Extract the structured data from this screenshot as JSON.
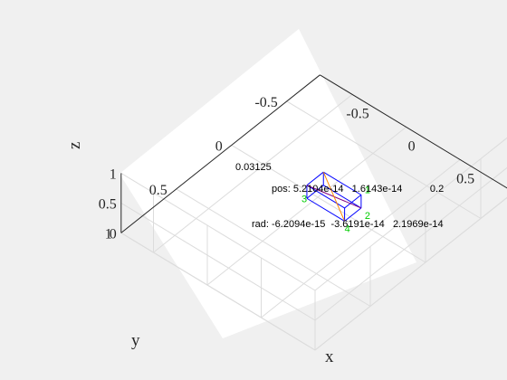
{
  "chart_data": {
    "type": "3d-box",
    "xlabel": "x",
    "ylabel": "y",
    "zlabel": "z",
    "x_ticks": [
      "-0.5",
      "0",
      "0.5",
      "1"
    ],
    "y_ticks": [
      "-0.5",
      "0",
      "0.5",
      "1"
    ],
    "z_ticks": [
      "0",
      "0.5",
      "1"
    ],
    "xlim": [
      -0.8,
      1.0
    ],
    "ylim": [
      -0.8,
      1.0
    ],
    "zlim": [
      0,
      1
    ],
    "grid": true,
    "box_time": "0.03125",
    "pos_text": "pos: 5.2104e-14   1.6143e-14          0.2",
    "rad_text": "rad: -6.2094e-15  -3.6191e-14   2.1969e-14",
    "corner_labels": [
      "1",
      "2",
      "3",
      "4"
    ],
    "colors": {
      "box": "#0000ff",
      "labels": "#00cc00",
      "diag_a": "#800080",
      "diag_b": "#ff8800"
    }
  }
}
